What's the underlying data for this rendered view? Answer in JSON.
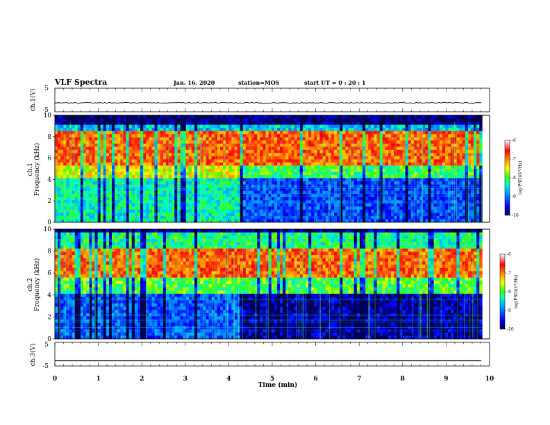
{
  "header": {
    "title": "VLF Spectra",
    "date": "Jan. 16, 2020",
    "station": "station=MOS",
    "start_ut": "start UT =  0 : 20 : 1"
  },
  "chart_data": [
    {
      "type": "line",
      "panel": "ch1-waveform",
      "ylabel": "ch.1(V)",
      "ylim": [
        -5,
        5
      ],
      "yticks": [
        "5",
        "-5"
      ],
      "series": [
        {
          "level": -1.2,
          "noise": "small fluctuations"
        }
      ]
    },
    {
      "type": "heatmap",
      "panel": "ch1-spectrogram",
      "ylabel": "ch.1\nFrequency (kHz)",
      "ylim": [
        0,
        10
      ],
      "yticks": [
        "0",
        "2",
        "4",
        "6",
        "8",
        "10"
      ],
      "xlim": [
        0,
        10
      ],
      "data_end_min": 9.83,
      "colorbar": {
        "label": "log(PSD)(V²/Hz)",
        "range": [
          -10,
          -6
        ],
        "ticks": [
          "-6",
          "-7",
          "-8",
          "-9",
          "-10"
        ]
      }
    },
    {
      "type": "heatmap",
      "panel": "ch2-spectrogram",
      "ylabel": "ch.2\nFrequency (kHz)",
      "ylim": [
        0,
        10
      ],
      "yticks": [
        "0",
        "2",
        "4",
        "6",
        "8",
        "10"
      ],
      "xlim": [
        0,
        10
      ],
      "data_end_min": 9.83,
      "colorbar": {
        "label": "log(PSD)(V²/Hz)",
        "range": [
          -10,
          -6
        ],
        "ticks": [
          "-6",
          "-7",
          "-8",
          "-9",
          "-10"
        ]
      }
    },
    {
      "type": "line",
      "panel": "ch3-waveform",
      "ylabel": "ch.3(V)",
      "ylim": [
        -5,
        5
      ],
      "yticks": [
        "5",
        "-5"
      ],
      "series": [
        {
          "level": -2.8,
          "noise": "flat"
        }
      ]
    }
  ],
  "xaxis": {
    "label": "Time (min)",
    "ticks": [
      "0",
      "1",
      "2",
      "3",
      "4",
      "5",
      "6",
      "7",
      "8",
      "9",
      "10"
    ],
    "range": [
      0,
      10
    ]
  },
  "colors": {
    "scale": [
      "#000060",
      "#0000ff",
      "#0080ff",
      "#00ffff",
      "#00ff80",
      "#80ff00",
      "#ffff00",
      "#ff8000",
      "#ff0000",
      "#ffffff"
    ],
    "background": "#000000"
  }
}
